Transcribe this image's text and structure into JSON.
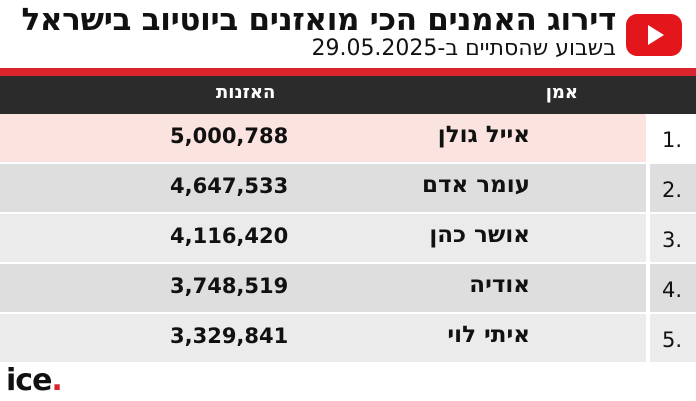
{
  "header": {
    "title": "דירוג האמנים הכי מואזנים ביוטיוב בישראל",
    "subtitle": "בשבוע שהסתיים ב-29.05.2025",
    "logo_icon": "youtube-play-icon"
  },
  "table": {
    "columns": {
      "artist": "אמן",
      "plays": "האזנות"
    },
    "rows": [
      {
        "rank": "1.",
        "artist": "אייל גולן",
        "plays": "5,000,788",
        "bg": "#fbe3e0",
        "rank_bg": "#ffffff"
      },
      {
        "rank": "2.",
        "artist": "עומר אדם",
        "plays": "4,647,533",
        "bg": "#dedede",
        "rank_bg": "#dedede"
      },
      {
        "rank": "3.",
        "artist": "אושר כהן",
        "plays": "4,116,420",
        "bg": "#ebebeb",
        "rank_bg": "#ebebeb"
      },
      {
        "rank": "4.",
        "artist": "אודיה",
        "plays": "3,748,519",
        "bg": "#dedede",
        "rank_bg": "#dedede"
      },
      {
        "rank": "5.",
        "artist": "איתי לוי",
        "plays": "3,329,841",
        "bg": "#ebebeb",
        "rank_bg": "#ebebeb"
      }
    ]
  },
  "footer": {
    "brand": "ice",
    "brand_dot": "."
  },
  "colors": {
    "accent": "#d9252b",
    "header_bg": "#2b2b2b",
    "youtube_red": "#e3161c"
  }
}
